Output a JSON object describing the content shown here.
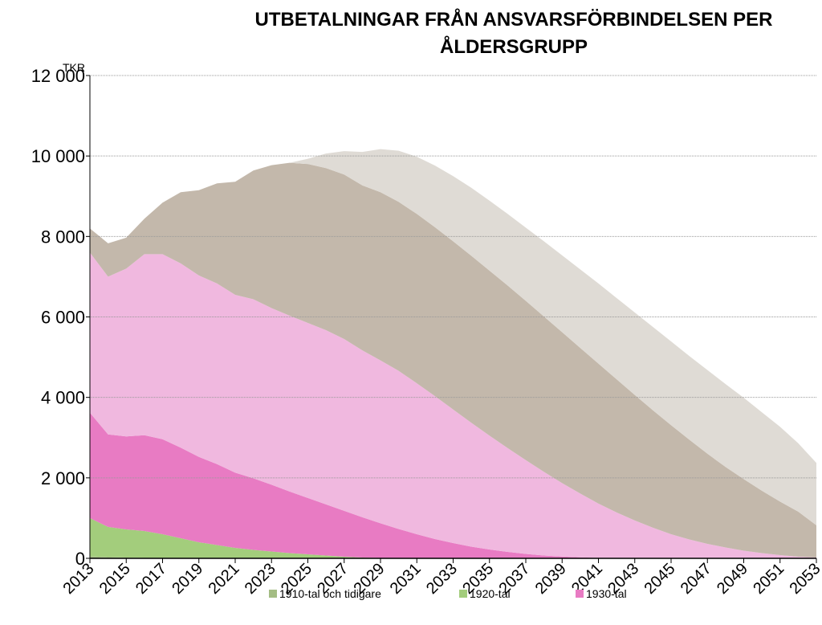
{
  "chart_data": {
    "type": "stacked_area",
    "title": "UTBETALNINGAR FRÅN ANSVARSFÖRBINDELSEN PER ÅLDERSGRUPP",
    "y_axis_label": "TKR",
    "x": [
      2013,
      2014,
      2015,
      2016,
      2017,
      2018,
      2019,
      2020,
      2021,
      2022,
      2023,
      2024,
      2025,
      2026,
      2027,
      2028,
      2029,
      2030,
      2031,
      2032,
      2033,
      2034,
      2035,
      2036,
      2037,
      2038,
      2039,
      2040,
      2041,
      2042,
      2043,
      2044,
      2045,
      2046,
      2047,
      2048,
      2049,
      2050,
      2051,
      2052,
      2053
    ],
    "xlim": [
      2013,
      2053
    ],
    "xticks": [
      2013,
      2015,
      2017,
      2019,
      2021,
      2023,
      2025,
      2027,
      2029,
      2031,
      2033,
      2035,
      2037,
      2039,
      2041,
      2043,
      2045,
      2047,
      2049,
      2051,
      2053
    ],
    "ylim": [
      0,
      12000
    ],
    "yticks": [
      0,
      {
        "value": 2000,
        "label": "2 000"
      },
      {
        "value": 4000,
        "label": "4 000"
      },
      {
        "value": 6000,
        "label": "6 000"
      },
      {
        "value": 8000,
        "label": "8 000"
      },
      {
        "value": 10000,
        "label": "10 000"
      },
      {
        "value": 12000,
        "label": "12 000"
      }
    ],
    "grid": true,
    "legend": "bottom",
    "series": [
      {
        "name": "1910-tal och tidigare",
        "color": "#a4bd84",
        "values": [
          50,
          30,
          20,
          10,
          0,
          0,
          0,
          0,
          0,
          0,
          0,
          0,
          0,
          0,
          0,
          0,
          0,
          0,
          0,
          0,
          0,
          0,
          0,
          0,
          0,
          0,
          0,
          0,
          0,
          0,
          0,
          0,
          0,
          0,
          0,
          0,
          0,
          0,
          0,
          0,
          0
        ]
      },
      {
        "name": "1920-tal",
        "color": "#a3cd7c",
        "values": [
          950,
          750,
          700,
          670,
          600,
          500,
          400,
          330,
          260,
          210,
          170,
          130,
          100,
          70,
          40,
          20,
          10,
          0,
          0,
          0,
          0,
          0,
          0,
          0,
          0,
          0,
          0,
          0,
          0,
          0,
          0,
          0,
          0,
          0,
          0,
          0,
          0,
          0,
          0,
          0,
          0
        ]
      },
      {
        "name": "1930-tal",
        "color": "#e87bc3",
        "values": [
          2620,
          2300,
          2310,
          2380,
          2360,
          2250,
          2120,
          2010,
          1870,
          1780,
          1660,
          1530,
          1400,
          1270,
          1140,
          1000,
          860,
          730,
          600,
          480,
          380,
          290,
          220,
          160,
          110,
          70,
          45,
          25,
          10,
          5,
          0,
          0,
          0,
          0,
          0,
          0,
          0,
          0,
          0,
          0,
          0
        ]
      },
      {
        "color": "#f0b8df",
        "values": [
          3980,
          3920,
          4170,
          4500,
          4600,
          4580,
          4510,
          4490,
          4420,
          4450,
          4390,
          4370,
          4350,
          4330,
          4270,
          4150,
          4050,
          3930,
          3750,
          3550,
          3320,
          3080,
          2830,
          2580,
          2330,
          2080,
          1825,
          1585,
          1350,
          1135,
          940,
          760,
          600,
          470,
          360,
          270,
          190,
          130,
          80,
          40,
          20
        ]
      },
      {
        "color": "#c3b8ab",
        "values": [
          600,
          830,
          770,
          880,
          1280,
          1770,
          2120,
          2490,
          2810,
          3200,
          3550,
          3800,
          3950,
          4030,
          4090,
          4100,
          4180,
          4200,
          4210,
          4200,
          4180,
          4150,
          4100,
          4040,
          3960,
          3860,
          3750,
          3620,
          3480,
          3310,
          3120,
          2920,
          2710,
          2480,
          2240,
          2000,
          1780,
          1550,
          1330,
          1120,
          800
        ]
      },
      {
        "color": "#dfdbd5",
        "values": [
          0,
          0,
          0,
          0,
          0,
          0,
          0,
          0,
          0,
          0,
          0,
          0,
          130,
          360,
          580,
          830,
          1070,
          1270,
          1420,
          1530,
          1620,
          1690,
          1740,
          1780,
          1820,
          1870,
          1910,
          1950,
          1990,
          2020,
          2050,
          2070,
          2080,
          2080,
          2080,
          2060,
          2020,
          1950,
          1860,
          1700,
          1550
        ]
      }
    ]
  }
}
